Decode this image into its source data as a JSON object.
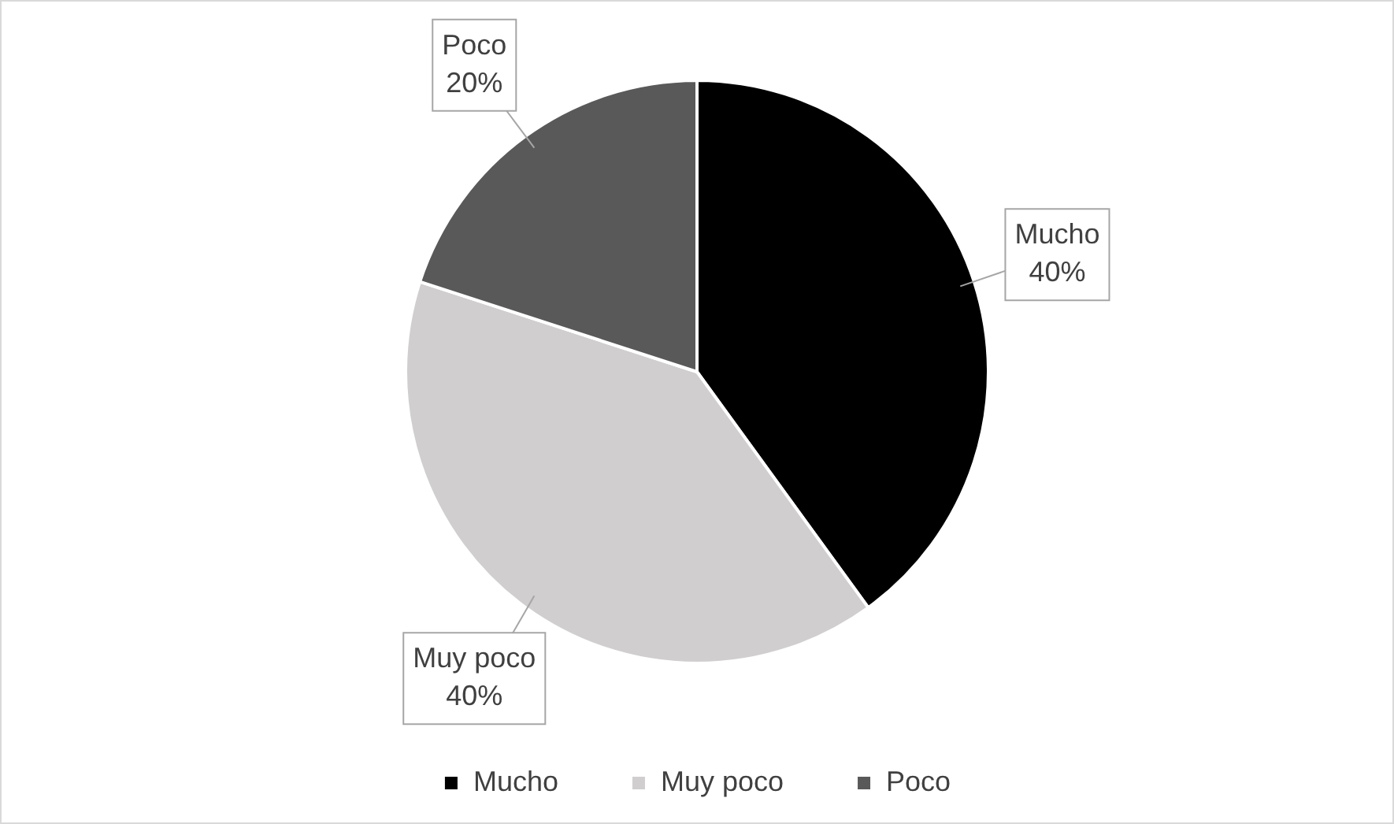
{
  "chart_data": {
    "type": "pie",
    "categories": [
      "Mucho",
      "Muy poco",
      "Poco"
    ],
    "values": [
      40,
      40,
      20
    ],
    "colors": [
      "#000000",
      "#d0cece",
      "#595959"
    ],
    "value_labels": [
      "40%",
      "40%",
      "20%"
    ],
    "legend": "bottom"
  }
}
